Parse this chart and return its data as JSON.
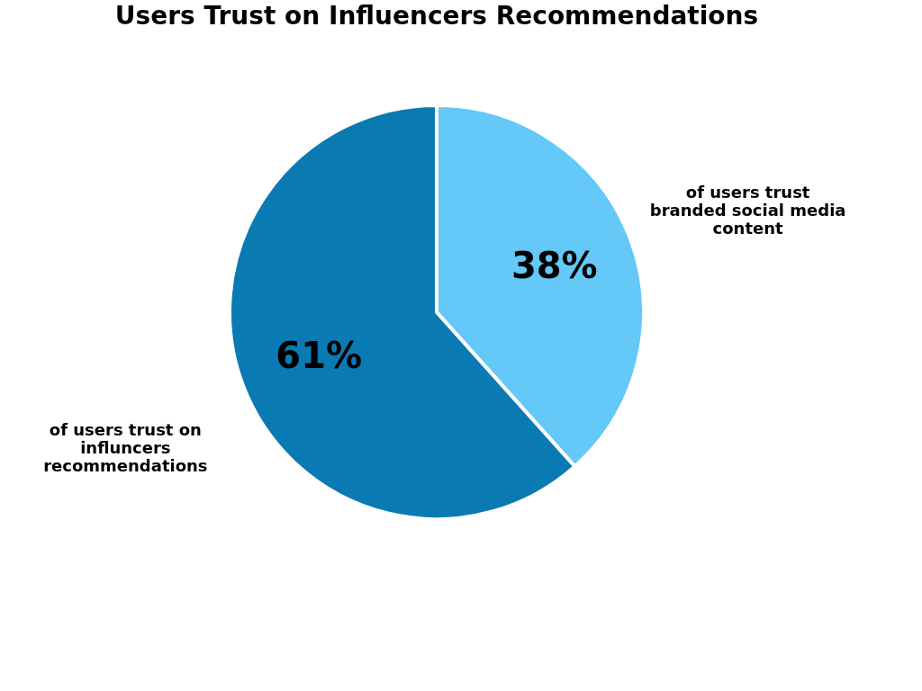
{
  "chart_data": {
    "type": "pie",
    "title": "Users Trust on Influencers Recommendations",
    "categories": [
      "of users trust branded social media content",
      "of users trust on influncers recommendations"
    ],
    "values": [
      38,
      61
    ],
    "colors": [
      "#64c8f8",
      "#0a7ab3"
    ],
    "value_labels": [
      "38%",
      "61%"
    ]
  }
}
